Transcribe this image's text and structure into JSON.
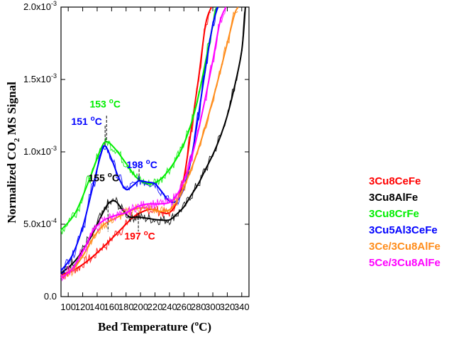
{
  "chart_data": {
    "type": "line",
    "title": "",
    "xlabel": "Bed Temperature (",
    "xlabel_sup": "o",
    "xlabel_end": "C)",
    "ylabel_pre": "Normalized CO",
    "ylabel_sub": "2",
    "ylabel_post": " MS Signal",
    "xlim": [
      90,
      350
    ],
    "ylim": [
      0,
      0.002
    ],
    "xticks": [
      100,
      120,
      140,
      160,
      180,
      200,
      220,
      240,
      260,
      280,
      300,
      320,
      340
    ],
    "xtick_labels": [
      "100",
      "120",
      "140",
      "160",
      "180",
      "200",
      "220",
      "240",
      "260",
      "280",
      "300",
      "320",
      "340"
    ],
    "yticks": [
      0,
      0.0005,
      0.001,
      0.0015,
      0.002
    ],
    "ytick_labels": [
      {
        "base": "0.0",
        "exp": ""
      },
      {
        "base": "5.0x10",
        "exp": "-4"
      },
      {
        "base": "1.0x10",
        "exp": "-3"
      },
      {
        "base": "1.5x10",
        "exp": "-3"
      },
      {
        "base": "2.0x10",
        "exp": "-3"
      }
    ],
    "legend_position": "right",
    "series": [
      {
        "name": "3Cu8CeFe",
        "color": "#ff0000",
        "x": [
          90,
          110,
          130,
          150,
          170,
          190,
          200,
          210,
          220,
          230,
          240,
          250,
          260,
          270,
          280,
          290,
          298
        ],
        "y": [
          0.00015,
          0.00019,
          0.00026,
          0.00035,
          0.00045,
          0.00055,
          0.00058,
          0.0006,
          0.0006,
          0.00058,
          0.00058,
          0.00065,
          0.00082,
          0.00115,
          0.0015,
          0.00188,
          0.002
        ]
      },
      {
        "name": "3Cu8AlFe",
        "color": "#000000",
        "x": [
          90,
          110,
          130,
          145,
          155,
          165,
          175,
          185,
          195,
          210,
          225,
          240,
          250,
          260,
          270,
          280,
          290,
          300,
          310,
          320,
          330,
          340,
          345
        ],
        "y": [
          0.00016,
          0.00025,
          0.0004,
          0.00055,
          0.00064,
          0.00066,
          0.0006,
          0.00055,
          0.00055,
          0.00054,
          0.00053,
          0.00053,
          0.00057,
          0.00062,
          0.0007,
          0.00078,
          0.00088,
          0.00098,
          0.0011,
          0.00125,
          0.00145,
          0.0017,
          0.002
        ]
      },
      {
        "name": "3Cu8CrFe",
        "color": "#00ee00",
        "x": [
          90,
          110,
          130,
          145,
          153,
          165,
          180,
          195,
          210,
          225,
          240,
          255,
          265,
          275,
          285,
          295,
          305
        ],
        "y": [
          0.00046,
          0.00058,
          0.00082,
          0.00102,
          0.00107,
          0.00102,
          0.00092,
          0.00082,
          0.00078,
          0.0008,
          0.00088,
          0.001,
          0.00112,
          0.00128,
          0.0015,
          0.00175,
          0.002
        ]
      },
      {
        "name": "3Cu5Al3CeFe",
        "color": "#0000ff",
        "x": [
          90,
          105,
          120,
          135,
          145,
          151,
          160,
          170,
          180,
          190,
          198,
          210,
          220,
          230,
          240,
          250,
          260,
          270,
          280,
          290,
          300,
          307
        ],
        "y": [
          0.00018,
          0.00028,
          0.00048,
          0.00078,
          0.00098,
          0.00104,
          0.00095,
          0.00082,
          0.00074,
          0.00077,
          0.0008,
          0.00079,
          0.00078,
          0.00072,
          0.00066,
          0.00066,
          0.00075,
          0.00095,
          0.00125,
          0.00158,
          0.00188,
          0.002
        ]
      },
      {
        "name": "3Ce/3Cu8AlFe",
        "color": "#ff8c1a",
        "x": [
          90,
          105,
          120,
          135,
          150,
          165,
          180,
          195,
          210,
          225,
          240,
          250,
          260,
          270,
          280,
          290,
          300,
          310,
          320,
          330,
          335
        ],
        "y": [
          0.00013,
          0.00018,
          0.00028,
          0.00041,
          0.0005,
          0.00054,
          0.00058,
          0.00061,
          0.00061,
          0.00059,
          0.0006,
          0.00066,
          0.00076,
          0.00088,
          0.00102,
          0.00118,
          0.00136,
          0.00155,
          0.00175,
          0.00195,
          0.002
        ]
      },
      {
        "name": "5Ce/3Cu8AlFe",
        "color": "#ff00ff",
        "x": [
          90,
          105,
          120,
          135,
          150,
          165,
          180,
          195,
          210,
          225,
          240,
          250,
          260,
          270,
          280,
          290,
          300,
          310,
          318
        ],
        "y": [
          0.00013,
          0.00019,
          0.00031,
          0.00046,
          0.00053,
          0.00056,
          0.00058,
          0.00062,
          0.00064,
          0.00064,
          0.00065,
          0.0007,
          0.0008,
          0.00095,
          0.00115,
          0.00138,
          0.00163,
          0.0019,
          0.002
        ]
      }
    ],
    "annotations": [
      {
        "value": "153",
        "sup": "o",
        "unit": "C",
        "color": "#00ee00",
        "x": 153,
        "y": 0.00107
      },
      {
        "value": "151",
        "sup": "o",
        "unit": "C",
        "color": "#0000ff",
        "x": 151,
        "y": 0.00104
      },
      {
        "value": "198",
        "sup": "o",
        "unit": "C",
        "color": "#0000ff",
        "x": 198,
        "y": 0.0008
      },
      {
        "value": "155",
        "sup": "o",
        "unit": "C",
        "color": "#000000",
        "x": 155,
        "y": 0.00066
      },
      {
        "value": "197",
        "sup": "o",
        "unit": "C",
        "color": "#ff0000",
        "x": 197,
        "y": 0.00058
      }
    ]
  }
}
